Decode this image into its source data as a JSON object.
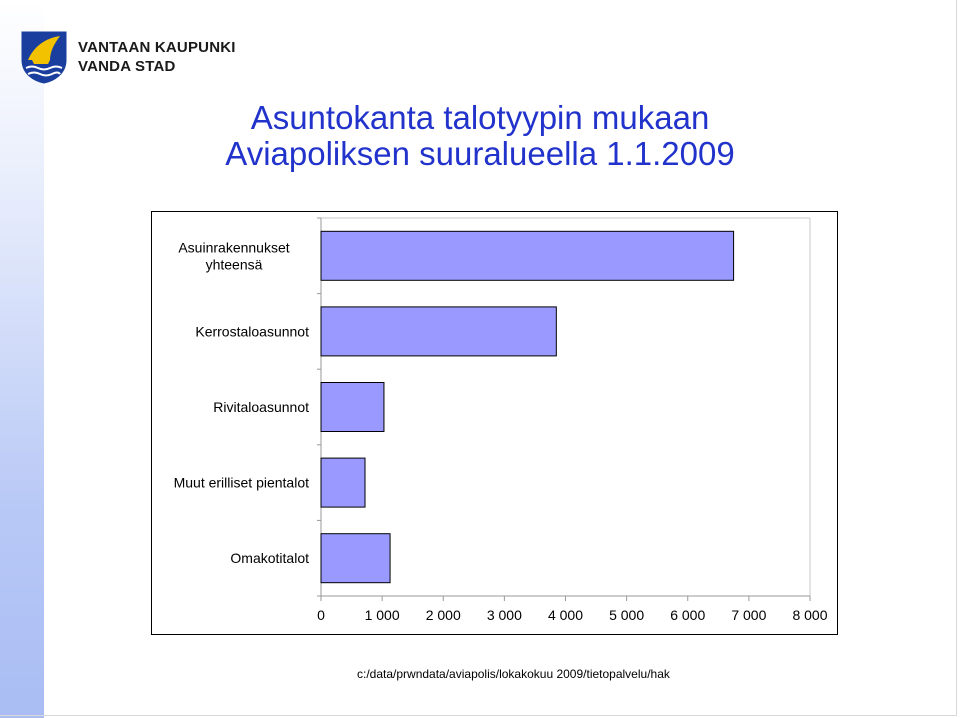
{
  "header": {
    "org_line1": "VANTAAN KAUPUNKI",
    "org_line2": "VANDA STAD",
    "logo_icon": "vantaa-coat-of-arms-icon"
  },
  "title": {
    "line1": "Asuntokanta talotyypin mukaan",
    "line2": "Aviapoliksen suuralueella 1.1.2009"
  },
  "colors": {
    "title": "#2233cc",
    "bar_fill": "#9999ff",
    "bar_stroke": "#000000"
  },
  "chart_data": {
    "type": "bar",
    "orientation": "horizontal",
    "categories": [
      "Asuinrakennukset yhteensä",
      "Kerrostaloasunnot",
      "Rivitaloasunnot",
      "Muut erilliset pientalot",
      "Omakotitalot"
    ],
    "category_lines": [
      [
        "Asuinrakennukset",
        "yhteensä"
      ],
      [
        "Kerrostaloasunnot"
      ],
      [
        "Rivitaloasunnot"
      ],
      [
        "Muut erilliset pientalot"
      ],
      [
        "Omakotitalot"
      ]
    ],
    "values": [
      6750,
      3850,
      1030,
      720,
      1130
    ],
    "xlim": [
      0,
      8000
    ],
    "xticks": [
      0,
      1000,
      2000,
      3000,
      4000,
      5000,
      6000,
      7000,
      8000
    ],
    "xtick_labels": [
      "0",
      "1 000",
      "2 000",
      "3 000",
      "4 000",
      "5 000",
      "6 000",
      "7 000",
      "8 000"
    ],
    "grid": false,
    "legend": "none"
  },
  "footer": {
    "path": "c:/data/prwndata/aviapolis/lokakokuu 2009/tietopalvelu/hak"
  }
}
